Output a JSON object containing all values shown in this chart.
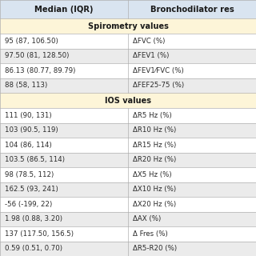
{
  "header_col1": "Median (IQR)",
  "header_col2": "Bronchodilator res",
  "spirometry_section": "Spirometry values",
  "ios_section": "IOS values",
  "spirometry_rows": [
    [
      "95 (87, 106.50)",
      "ΔFVC (%)"
    ],
    [
      "97.50 (81, 128.50)",
      "ΔFEV1 (%)"
    ],
    [
      "86.13 (80.77, 89.79)",
      "ΔFEV1⁄FVC (%)"
    ],
    [
      "88 (58, 113)",
      "ΔFEF25-75 (%)"
    ]
  ],
  "ios_rows": [
    [
      "111 (90, 131)",
      "ΔR5 Hz (%)"
    ],
    [
      "103 (90.5, 119)",
      "ΔR10 Hz (%)"
    ],
    [
      "104 (86, 114)",
      "ΔR15 Hz (%)"
    ],
    [
      "103.5 (86.5, 114)",
      "ΔR20 Hz (%)"
    ],
    [
      "98 (78.5, 112)",
      "ΔX5 Hz (%)"
    ],
    [
      "162.5 (93, 241)",
      "ΔX10 Hz (%)"
    ],
    [
      "-56 (-199, 22)",
      "ΔX20 Hz (%)"
    ],
    [
      "1.98 (0.88, 3.20)",
      "ΔAX (%)"
    ],
    [
      "137 (117.50, 156.5)",
      "Δ Fres (%)"
    ],
    [
      "0.59 (0.51, 0.70)",
      "ΔR5-R20 (%)"
    ]
  ],
  "fig_bg": "#d9e4f0",
  "header_bg": "#d9e4f0",
  "section_bg": "#fdf5d8",
  "row_bg_odd": "#ffffff",
  "row_bg_even": "#ebebeb",
  "line_color": "#b0b0b0",
  "header_text_color": "#1a1a1a",
  "section_text_color": "#1a1a1a",
  "data_text_color": "#2a2a2a",
  "font_size_header": 7.2,
  "font_size_section": 7.0,
  "font_size_data": 6.2
}
